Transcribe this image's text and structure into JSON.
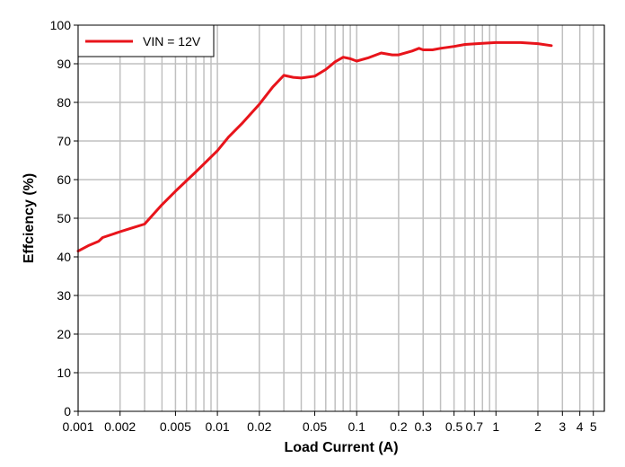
{
  "chart_data": {
    "type": "line",
    "xlabel": "Load Current (A)",
    "ylabel": "Effciency (%)",
    "xscale": "log",
    "xlim": [
      0.001,
      6
    ],
    "ylim": [
      0,
      100
    ],
    "grid": true,
    "legend_position": "top-left",
    "x_ticks": [
      {
        "value": 0.001,
        "label": "0.001"
      },
      {
        "value": 0.002,
        "label": "0.002"
      },
      {
        "value": 0.005,
        "label": "0.005"
      },
      {
        "value": 0.01,
        "label": "0.01"
      },
      {
        "value": 0.02,
        "label": "0.02"
      },
      {
        "value": 0.05,
        "label": "0.05"
      },
      {
        "value": 0.1,
        "label": "0.1"
      },
      {
        "value": 0.2,
        "label": "0.2"
      },
      {
        "value": 0.3,
        "label": "0.3"
      },
      {
        "value": 0.5,
        "label": "0.5"
      },
      {
        "value": 0.7,
        "label": "0.7"
      },
      {
        "value": 1,
        "label": "1"
      },
      {
        "value": 2,
        "label": "2"
      },
      {
        "value": 3,
        "label": "3"
      },
      {
        "value": 4,
        "label": "4"
      },
      {
        "value": 5,
        "label": "5"
      }
    ],
    "y_ticks": [
      0,
      10,
      20,
      30,
      40,
      50,
      60,
      70,
      80,
      90,
      100
    ],
    "series": [
      {
        "name": "VIN = 12V",
        "color": "#e8141b",
        "points": [
          [
            0.001,
            41.5
          ],
          [
            0.0012,
            43.0
          ],
          [
            0.0014,
            44.0
          ],
          [
            0.0015,
            45.0
          ],
          [
            0.002,
            46.5
          ],
          [
            0.0025,
            47.6
          ],
          [
            0.003,
            48.5
          ],
          [
            0.004,
            53.5
          ],
          [
            0.005,
            57.0
          ],
          [
            0.007,
            62.0
          ],
          [
            0.01,
            67.5
          ],
          [
            0.012,
            71.0
          ],
          [
            0.015,
            74.5
          ],
          [
            0.02,
            79.5
          ],
          [
            0.025,
            84.0
          ],
          [
            0.03,
            87.0
          ],
          [
            0.035,
            86.5
          ],
          [
            0.04,
            86.3
          ],
          [
            0.05,
            86.8
          ],
          [
            0.06,
            88.5
          ],
          [
            0.07,
            90.5
          ],
          [
            0.08,
            91.7
          ],
          [
            0.09,
            91.3
          ],
          [
            0.1,
            90.7
          ],
          [
            0.12,
            91.5
          ],
          [
            0.15,
            92.8
          ],
          [
            0.18,
            92.3
          ],
          [
            0.2,
            92.3
          ],
          [
            0.25,
            93.3
          ],
          [
            0.28,
            94.0
          ],
          [
            0.3,
            93.6
          ],
          [
            0.35,
            93.6
          ],
          [
            0.4,
            94.0
          ],
          [
            0.5,
            94.5
          ],
          [
            0.6,
            95.0
          ],
          [
            0.8,
            95.3
          ],
          [
            1.0,
            95.5
          ],
          [
            1.5,
            95.5
          ],
          [
            2.0,
            95.2
          ],
          [
            2.5,
            94.7
          ]
        ]
      }
    ]
  }
}
